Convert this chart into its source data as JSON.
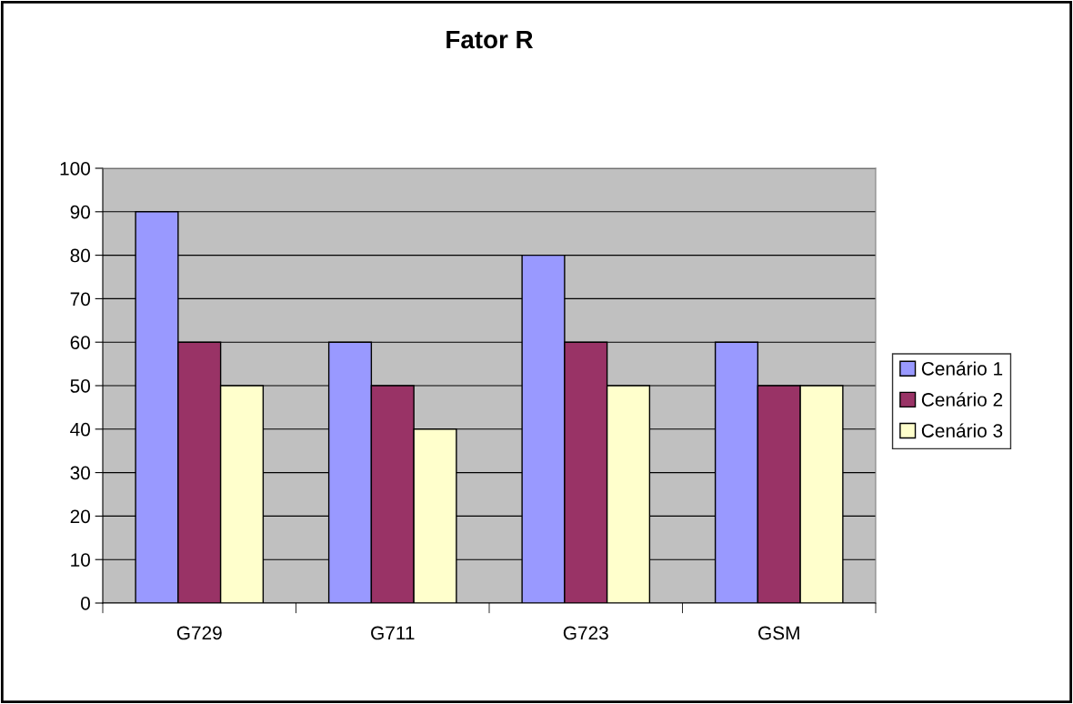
{
  "chart_data": {
    "type": "bar",
    "title": "Fator R",
    "categories": [
      "G729",
      "G711",
      "G723",
      "GSM"
    ],
    "series": [
      {
        "name": "Cenário 1",
        "color": "#9999ff",
        "values": [
          90,
          60,
          80,
          60
        ]
      },
      {
        "name": "Cenário 2",
        "color": "#993366",
        "values": [
          60,
          50,
          60,
          50
        ]
      },
      {
        "name": "Cenário 3",
        "color": "#ffffcc",
        "values": [
          50,
          40,
          50,
          50
        ]
      }
    ],
    "ylim": [
      0,
      100
    ],
    "yticks": [
      0,
      10,
      20,
      30,
      40,
      50,
      60,
      70,
      80,
      90,
      100
    ],
    "grid": "y",
    "legend": "right"
  }
}
